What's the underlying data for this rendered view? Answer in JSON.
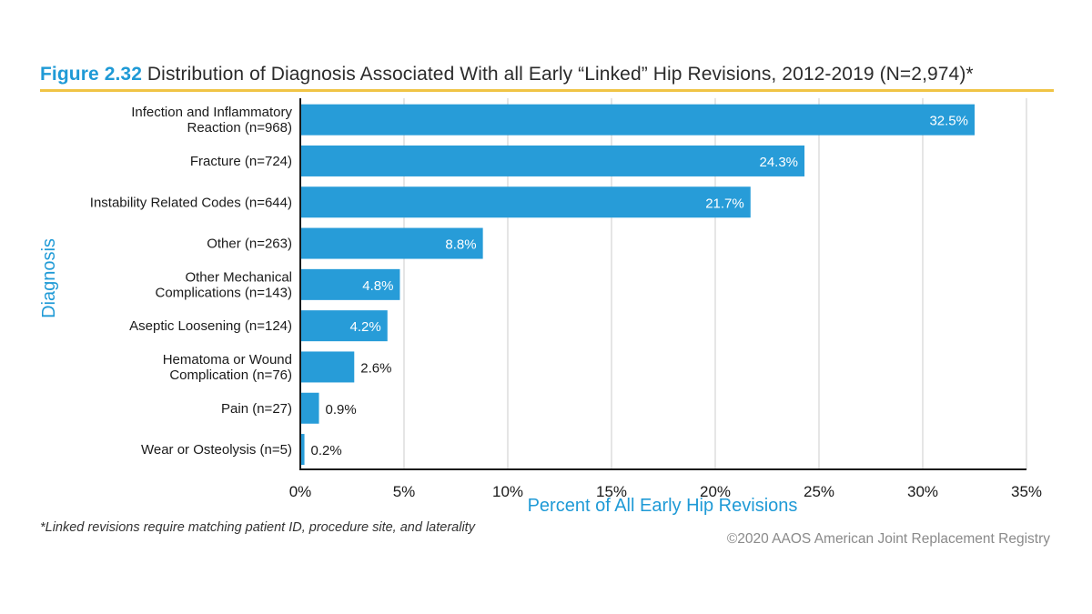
{
  "figure": {
    "label": "Figure 2.32",
    "title": "Distribution of Diagnosis Associated With all Early “Linked” Hip Revisions, 2012-2019 (N=2,974)*",
    "footnote": "*Linked revisions require matching patient ID, procedure site, and laterality",
    "copyright": "©2020 AAOS American Joint Replacement Registry"
  },
  "colors": {
    "bar": "#279cd8",
    "accent_blue": "#1f9ad6",
    "title_rule": "#f0c445",
    "grid": "#d4d4d4",
    "axis": "#1a1a1a",
    "label_text": "#1a1a1a",
    "bar_label_inside": "#ffffff"
  },
  "chart_data": {
    "type": "bar",
    "orientation": "horizontal",
    "categories": [
      [
        "Infection and Inflammatory",
        "Reaction (n=968)"
      ],
      [
        "Fracture (n=724)"
      ],
      [
        "Instability Related Codes (n=644)"
      ],
      [
        "Other (n=263)"
      ],
      [
        "Other Mechanical",
        "Complications (n=143)"
      ],
      [
        "Aseptic Loosening (n=124)"
      ],
      [
        "Hematoma or Wound",
        "Complication (n=76)"
      ],
      [
        "Pain (n=27)"
      ],
      [
        "Wear or Osteolysis (n=5)"
      ]
    ],
    "values": [
      32.5,
      24.3,
      21.7,
      8.8,
      4.8,
      4.2,
      2.6,
      0.9,
      0.2
    ],
    "value_labels": [
      "32.5%",
      "24.3%",
      "21.7%",
      "8.8%",
      "4.8%",
      "4.2%",
      "2.6%",
      "0.9%",
      "0.2%"
    ],
    "xlabel": "Percent of All Early Hip Revisions",
    "ylabel": "Diagnosis",
    "xlim": [
      0,
      35
    ],
    "x_ticks": [
      0,
      5,
      10,
      15,
      20,
      25,
      30,
      35
    ],
    "x_tick_labels": [
      "0%",
      "5%",
      "10%",
      "15%",
      "20%",
      "25%",
      "30%",
      "35%"
    ],
    "grid": "vertical",
    "legend": "none"
  }
}
